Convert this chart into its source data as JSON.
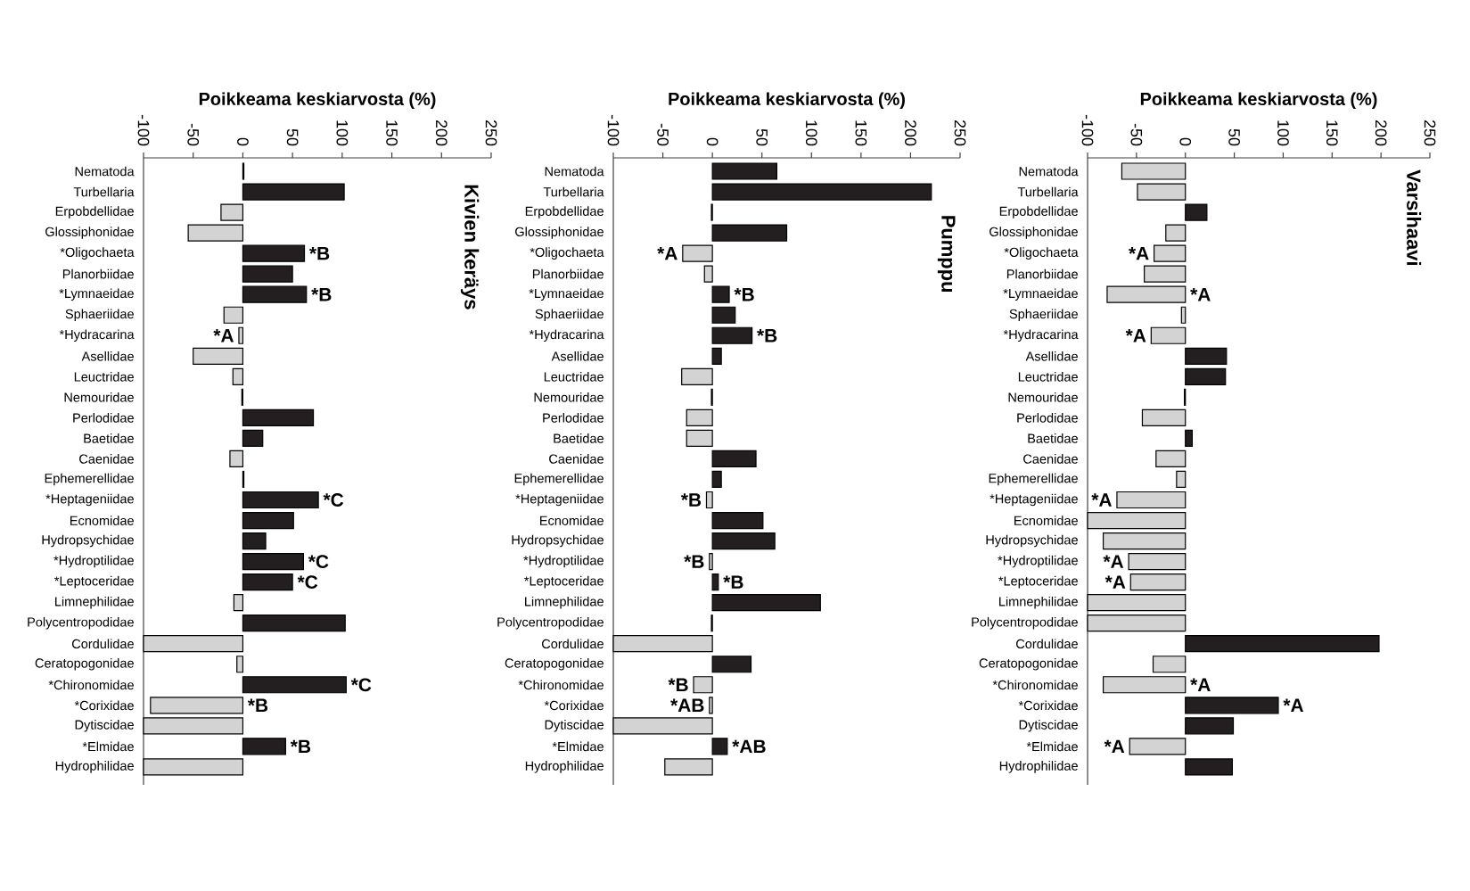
{
  "chart_data": [
    {
      "type": "bar",
      "orientation": "horizontal",
      "title": "Kivien keräys",
      "xlabel": "Poikkeama keskiarvosta (%)",
      "categories": [
        "Nematoda",
        "Turbellaria",
        "Erpobdellidae",
        "Glossiphonidae",
        "*Oligochaeta",
        "Planorbiidae",
        "*Lymnaeidae",
        "Sphaeriidae",
        "*Hydracarina",
        "Asellidae",
        "Leuctridae",
        "Nemouridae",
        "Perlodidae",
        "Baetidae",
        "Caenidae",
        "Ephemerellidae",
        "*Heptageniidae",
        "Ecnomidae",
        "Hydropsychidae",
        "*Hydroptilidae",
        "*Leptoceridae",
        "Limnephilidae",
        "Polycentropodidae",
        "Cordulidae",
        "Ceratopogonidae",
        "*Chironomidae",
        "*Corixidae",
        "Dytiscidae",
        "*Elmidae",
        "Hydrophilidae"
      ],
      "values": [
        1,
        102,
        -22,
        -55,
        62,
        50,
        64,
        -19,
        -4,
        -50,
        -10,
        -1,
        71,
        20,
        -13,
        1,
        76,
        51,
        23,
        61,
        50,
        -9,
        103,
        -100,
        -6,
        104,
        -93,
        -100,
        43,
        -100
      ],
      "colors": [
        "#231f20",
        "#231f20",
        "#d3d3d3",
        "#d3d3d3",
        "#231f20",
        "#231f20",
        "#231f20",
        "#d3d3d3",
        "#d3d3d3",
        "#d3d3d3",
        "#d3d3d3",
        "#d3d3d3",
        "#231f20",
        "#231f20",
        "#d3d3d3",
        "#231f20",
        "#231f20",
        "#231f20",
        "#231f20",
        "#231f20",
        "#231f20",
        "#d3d3d3",
        "#231f20",
        "#d3d3d3",
        "#d3d3d3",
        "#231f20",
        "#d3d3d3",
        "#d3d3d3",
        "#231f20",
        "#d3d3d3"
      ],
      "xlim": [
        -100,
        250
      ],
      "xticks": [
        -100,
        -50,
        0,
        50,
        100,
        150,
        200,
        250
      ],
      "annotations": [
        {
          "text": "*B",
          "x": 62,
          "y": "*Oligochaeta"
        },
        {
          "text": "*B",
          "x": 64,
          "y": "*Lymnaeidae"
        },
        {
          "text": "*A",
          "x": -4,
          "y": "*Hydracarina"
        },
        {
          "text": "*C",
          "x": 76,
          "y": "*Heptageniidae"
        },
        {
          "text": "*C",
          "x": 61,
          "y": "*Hydroptilidae"
        },
        {
          "text": "*C",
          "x": 50,
          "y": "*Leptoceridae"
        },
        {
          "text": "*C",
          "x": 104,
          "y": "*Chironomidae"
        },
        {
          "text": "*B",
          "x": 0,
          "y": "*Corixidae"
        },
        {
          "text": "*B",
          "x": 43,
          "y": "*Elmidae"
        }
      ]
    },
    {
      "type": "bar",
      "orientation": "horizontal",
      "title": "Pumppu",
      "xlabel": "Poikkeama keskiarvosta (%)",
      "categories": [
        "Nematoda",
        "Turbellaria",
        "Erpobdellidae",
        "Glossiphonidae",
        "*Oligochaeta",
        "Planorbiidae",
        "*Lymnaeidae",
        "Sphaeriidae",
        "*Hydracarina",
        "Asellidae",
        "Leuctridae",
        "Nemouridae",
        "Perlodidae",
        "Baetidae",
        "Caenidae",
        "Ephemerellidae",
        "*Heptageniidae",
        "Ecnomidae",
        "Hydropsychidae",
        "*Hydroptilidae",
        "*Leptoceridae",
        "Limnephilidae",
        "Polycentropodidae",
        "Cordulidae",
        "Ceratopogonidae",
        "*Chironomidae",
        "*Corixidae",
        "Dytiscidae",
        "*Elmidae",
        "Hydrophilidae"
      ],
      "values": [
        65,
        221,
        -1,
        75,
        -30,
        -8,
        17,
        23,
        40,
        9,
        -31,
        -1,
        -26,
        -26,
        44,
        9,
        -6,
        51,
        63,
        -3,
        6,
        109,
        -1,
        -100,
        39,
        -19,
        -3,
        -100,
        15,
        -48
      ],
      "colors": [
        "#231f20",
        "#231f20",
        "#231f20",
        "#231f20",
        "#d3d3d3",
        "#d3d3d3",
        "#231f20",
        "#231f20",
        "#231f20",
        "#231f20",
        "#d3d3d3",
        "#231f20",
        "#d3d3d3",
        "#d3d3d3",
        "#231f20",
        "#231f20",
        "#d3d3d3",
        "#231f20",
        "#231f20",
        "#d3d3d3",
        "#231f20",
        "#231f20",
        "#231f20",
        "#d3d3d3",
        "#231f20",
        "#d3d3d3",
        "#d3d3d3",
        "#d3d3d3",
        "#231f20",
        "#d3d3d3"
      ],
      "xlim": [
        -100,
        250
      ],
      "xticks": [
        -100,
        -50,
        0,
        50,
        100,
        150,
        200,
        250
      ],
      "annotations": [
        {
          "text": "*A",
          "x": -30,
          "y": "*Oligochaeta"
        },
        {
          "text": "*B",
          "x": 17,
          "y": "*Lymnaeidae"
        },
        {
          "text": "*B",
          "x": 40,
          "y": "*Hydracarina"
        },
        {
          "text": "*B",
          "x": -6,
          "y": "*Heptageniidae"
        },
        {
          "text": "*B",
          "x": -3,
          "y": "*Hydroptilidae"
        },
        {
          "text": "*B",
          "x": 6,
          "y": "*Leptoceridae"
        },
        {
          "text": "*B",
          "x": -19,
          "y": "*Chironomidae"
        },
        {
          "text": "*AB",
          "x": -3,
          "y": "*Corixidae"
        },
        {
          "text": "*AB",
          "x": 15,
          "y": "*Elmidae"
        }
      ]
    },
    {
      "type": "bar",
      "orientation": "horizontal",
      "title": "Varsihaavi",
      "xlabel": "Poikkeama keskiarvosta (%)",
      "categories": [
        "Nematoda",
        "Turbellaria",
        "Erpobdellidae",
        "Glossiphonidae",
        "*Oligochaeta",
        "Planorbiidae",
        "*Lymnaeidae",
        "Sphaeriidae",
        "*Hydracarina",
        "Asellidae",
        "Leuctridae",
        "Nemouridae",
        "Perlodidae",
        "Baetidae",
        "Caenidae",
        "Ephemerellidae",
        "*Heptageniidae",
        "Ecnomidae",
        "Hydropsychidae",
        "*Hydroptilidae",
        "*Leptoceridae",
        "Limnephilidae",
        "Polycentropodidae",
        "Cordulidae",
        "Ceratopogonidae",
        "*Chironomidae",
        "*Corixidae",
        "Dytiscidae",
        "*Elmidae",
        "Hydrophilidae"
      ],
      "values": [
        -65,
        -49,
        22,
        -20,
        -32,
        -42,
        -80,
        -4,
        -35,
        42,
        41,
        -1,
        -44,
        7,
        -30,
        -9,
        -70,
        -100,
        -84,
        -58,
        -56,
        -100,
        -100,
        198,
        -33,
        -84,
        95,
        49,
        -57,
        48
      ],
      "colors": [
        "#d3d3d3",
        "#d3d3d3",
        "#231f20",
        "#d3d3d3",
        "#d3d3d3",
        "#d3d3d3",
        "#d3d3d3",
        "#d3d3d3",
        "#d3d3d3",
        "#231f20",
        "#231f20",
        "#231f20",
        "#d3d3d3",
        "#231f20",
        "#d3d3d3",
        "#d3d3d3",
        "#d3d3d3",
        "#d3d3d3",
        "#d3d3d3",
        "#d3d3d3",
        "#d3d3d3",
        "#d3d3d3",
        "#d3d3d3",
        "#231f20",
        "#d3d3d3",
        "#d3d3d3",
        "#231f20",
        "#231f20",
        "#d3d3d3",
        "#231f20"
      ],
      "xlim": [
        -100,
        250
      ],
      "xticks": [
        -100,
        -50,
        0,
        50,
        100,
        150,
        200,
        250
      ],
      "annotations": [
        {
          "text": "*A",
          "x": -32,
          "y": "*Oligochaeta"
        },
        {
          "text": "*A",
          "x": 0,
          "y": "*Lymnaeidae"
        },
        {
          "text": "*A",
          "x": -35,
          "y": "*Hydracarina"
        },
        {
          "text": "*A",
          "x": -70,
          "y": "*Heptageniidae"
        },
        {
          "text": "*A",
          "x": -58,
          "y": "*Hydroptilidae"
        },
        {
          "text": "*A",
          "x": -56,
          "y": "*Leptoceridae"
        },
        {
          "text": "*A",
          "x": 0,
          "y": "*Chironomidae"
        },
        {
          "text": "*A",
          "x": 95,
          "y": "*Corixidae"
        },
        {
          "text": "*A",
          "x": -57,
          "y": "*Elmidae"
        }
      ]
    }
  ]
}
